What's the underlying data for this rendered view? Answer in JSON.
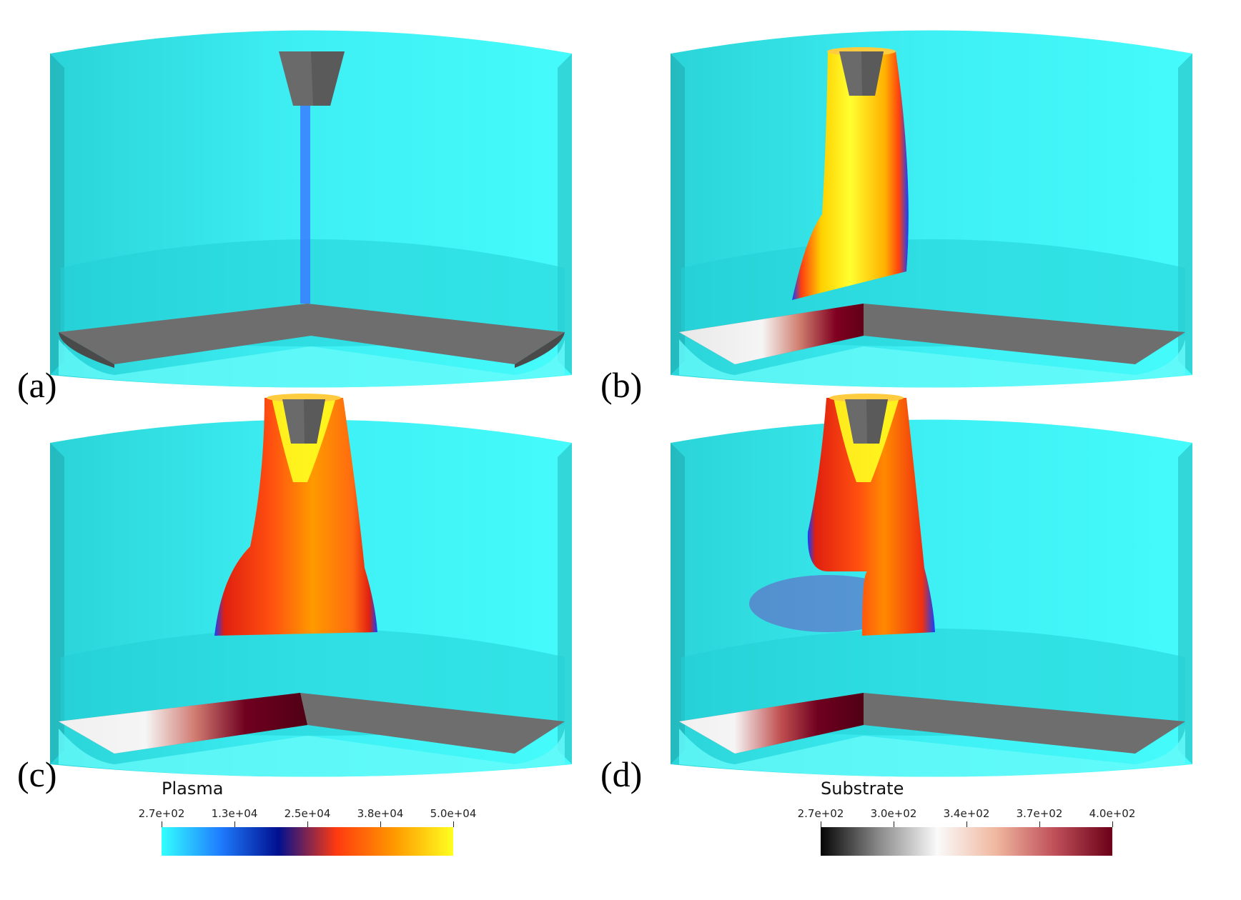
{
  "panels": [
    {
      "label": "(a)",
      "stage": "initial"
    },
    {
      "label": "(b)",
      "stage": "plasma-column"
    },
    {
      "label": "(c)",
      "stage": "plasma-spread"
    },
    {
      "label": "(d)",
      "stage": "plasma-detach"
    }
  ],
  "colorbars": {
    "plasma": {
      "title": "Plasma",
      "ticks": [
        "2.7e+02",
        "1.3e+04",
        "2.5e+04",
        "3.8e+04",
        "5.0e+04"
      ],
      "colors": [
        "#33ffff",
        "#1f7dff",
        "#001090",
        "#ff3a10",
        "#ff9a00",
        "#ffff20"
      ]
    },
    "substrate": {
      "title": "Substrate",
      "ticks": [
        "2.7e+02",
        "3.0e+02",
        "3.4e+02",
        "3.7e+02",
        "4.0e+02"
      ],
      "colors": [
        "#050505",
        "#8a8a8a",
        "#fafafa",
        "#f0b8a0",
        "#c0505a",
        "#6a0018"
      ]
    }
  },
  "scene_colors": {
    "cylinder": "#40f4f8",
    "cylinder_shade": "#2ad8dc",
    "metal": "#6e6e6e",
    "metal_dark": "#555555"
  }
}
